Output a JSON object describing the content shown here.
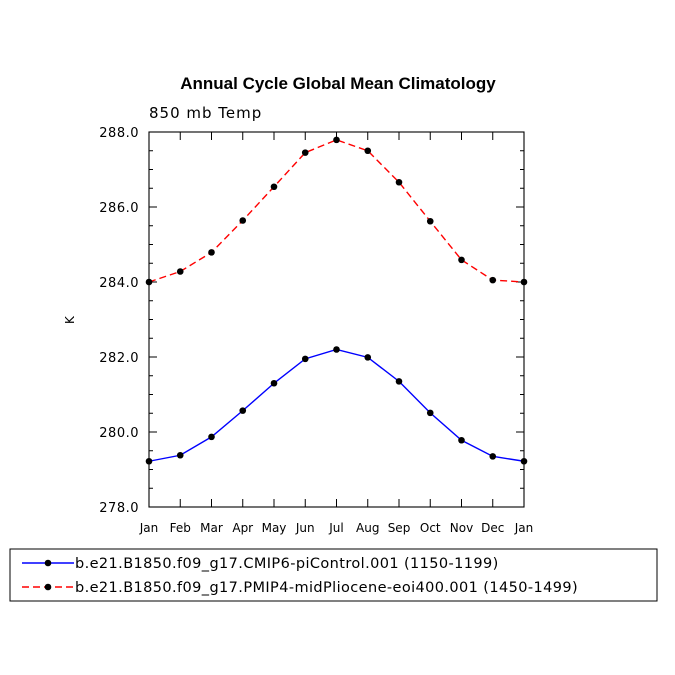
{
  "chart_data": {
    "type": "line",
    "title": "Annual Cycle Global Mean Climatology",
    "subtitle": "850 mb Temp",
    "xlabel": "",
    "ylabel": "K",
    "categories": [
      "Jan",
      "Feb",
      "Mar",
      "Apr",
      "May",
      "Jun",
      "Jul",
      "Aug",
      "Sep",
      "Oct",
      "Nov",
      "Dec",
      "Jan"
    ],
    "ylim": [
      278.0,
      288.0
    ],
    "yticks": [
      "278.0",
      "280.0",
      "282.0",
      "284.0",
      "286.0",
      "288.0"
    ],
    "ytick_values": [
      278,
      280,
      282,
      284,
      286,
      288
    ],
    "grid": false,
    "legend_position": "bottom",
    "series": [
      {
        "name": "b.e21.B1850.f09_g17.CMIP6-piControl.001 (1150-1199)",
        "color": "#0000ff",
        "dash": "solid",
        "values": [
          279.22,
          279.38,
          279.87,
          280.57,
          281.3,
          281.95,
          282.2,
          281.99,
          281.35,
          280.51,
          279.78,
          279.35,
          279.22
        ]
      },
      {
        "name": "b.e21.B1850.f09_g17.PMIP4-midPliocene-eoi400.001 (1450-1499)",
        "color": "#ff0000",
        "dash": "dashed",
        "values": [
          284.0,
          284.28,
          284.79,
          285.64,
          286.54,
          287.45,
          287.79,
          287.5,
          286.66,
          285.62,
          284.59,
          284.05,
          284.0
        ]
      }
    ]
  }
}
